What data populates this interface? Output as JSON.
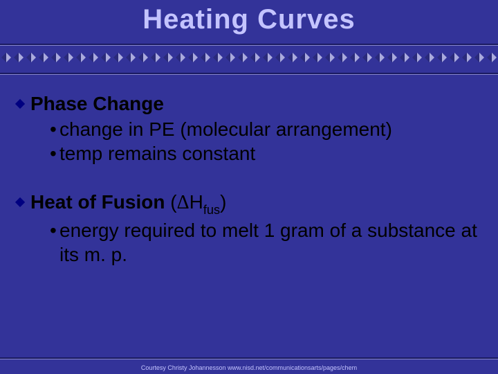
{
  "colors": {
    "background": "#333399",
    "title_text": "#c4c4ff",
    "body_text": "#000000",
    "rule_dark": "#1a1a60",
    "rule_light": "#8888cc",
    "diamond_dark": "#2a2a7a",
    "diamond_light": "#aaaadd",
    "bullet_diamond": "#000080",
    "footer_text": "#c4c4ff"
  },
  "title": {
    "text": "Heating Curves",
    "fontsize": 40
  },
  "sections": [
    {
      "head_bold": "Phase Change",
      "head_rest": "",
      "sub": [
        "change in PE (molecular arrangement)",
        "temp remains constant"
      ]
    },
    {
      "head_bold": "Heat of Fusion",
      "head_rest_prefix": " (",
      "head_rest_delta": "Δ",
      "head_rest_sym": "H",
      "head_rest_sub": "fus",
      "head_rest_suffix": ")",
      "sub": [
        "energy required to melt 1 gram of a substance at its m. p."
      ]
    }
  ],
  "body_fontsize": 28,
  "diamond_row": {
    "count": 40,
    "size": 14
  },
  "rule": {
    "thickness": 3
  },
  "footer": {
    "text": "Courtesy Christy Johannesson www.nisd.net/communicationsarts/pages/chem",
    "fontsize": 9
  }
}
